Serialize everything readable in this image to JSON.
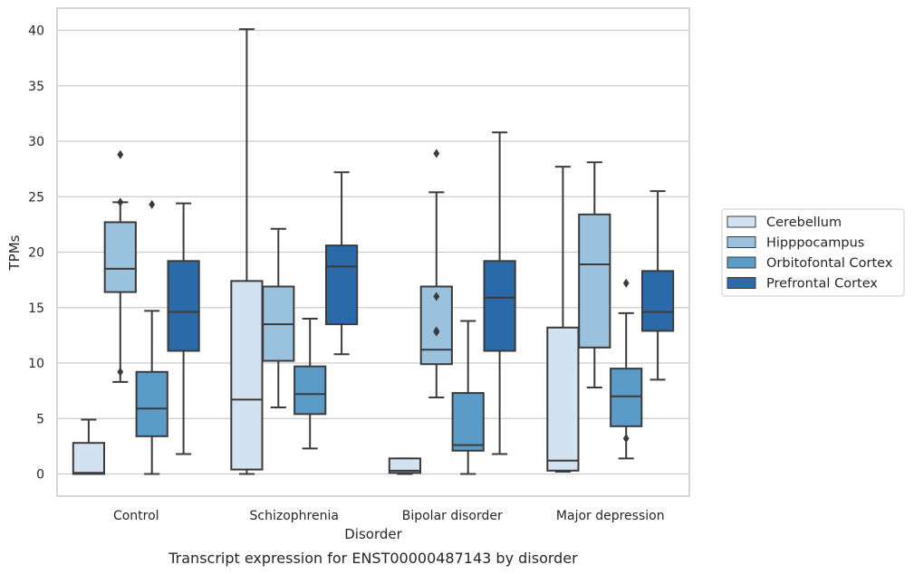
{
  "caption": "Transcript expression for ENST00000487143 by disorder",
  "chart_data": {
    "type": "box",
    "xlabel": "Disorder",
    "ylabel": "TPMs",
    "ylim": [
      -2,
      42
    ],
    "yticks": [
      0,
      5,
      10,
      15,
      20,
      25,
      30,
      35,
      40
    ],
    "grid": true,
    "legend_position": "right",
    "categories": [
      "Control",
      "Schizophrenia",
      "Bipolar disorder",
      "Major depression"
    ],
    "series": [
      {
        "name": "Cerebellum",
        "color": "#d3e2f1",
        "boxes": [
          {
            "whislo": 0.0,
            "q1": 0.0,
            "med": 0.1,
            "q3": 2.8,
            "whishi": 4.9,
            "fliers": []
          },
          {
            "whislo": 0.0,
            "q1": 0.4,
            "med": 6.7,
            "q3": 17.4,
            "whishi": 40.1,
            "fliers": []
          },
          {
            "whislo": 0.0,
            "q1": 0.1,
            "med": 0.3,
            "q3": 1.4,
            "whishi": 1.4,
            "fliers": []
          },
          {
            "whislo": 0.2,
            "q1": 0.3,
            "med": 1.2,
            "q3": 13.2,
            "whishi": 27.7,
            "fliers": []
          }
        ]
      },
      {
        "name": "Hipppocampus",
        "color": "#9ac1dd",
        "boxes": [
          {
            "whislo": 8.3,
            "q1": 16.4,
            "med": 18.5,
            "q3": 22.7,
            "whishi": 24.5,
            "fliers": [
              28.8,
              24.5,
              9.2
            ]
          },
          {
            "whislo": 6.0,
            "q1": 10.2,
            "med": 13.5,
            "q3": 16.9,
            "whishi": 22.1,
            "fliers": []
          },
          {
            "whislo": 6.9,
            "q1": 9.9,
            "med": 11.2,
            "q3": 16.9,
            "whishi": 25.4,
            "fliers": [
              28.9,
              16.0,
              12.9,
              12.8
            ]
          },
          {
            "whislo": 7.8,
            "q1": 11.4,
            "med": 18.9,
            "q3": 23.4,
            "whishi": 28.1,
            "fliers": []
          }
        ]
      },
      {
        "name": "Orbitofontal Cortex",
        "color": "#5a9bc8",
        "boxes": [
          {
            "whislo": 0.0,
            "q1": 3.4,
            "med": 5.9,
            "q3": 9.2,
            "whishi": 14.7,
            "fliers": [
              24.3
            ]
          },
          {
            "whislo": 2.3,
            "q1": 5.4,
            "med": 7.2,
            "q3": 9.7,
            "whishi": 14.0,
            "fliers": []
          },
          {
            "whislo": 0.0,
            "q1": 2.1,
            "med": 2.6,
            "q3": 7.3,
            "whishi": 13.8,
            "fliers": []
          },
          {
            "whislo": 1.4,
            "q1": 4.3,
            "med": 7.0,
            "q3": 9.5,
            "whishi": 14.5,
            "fliers": [
              17.2,
              3.2
            ]
          }
        ]
      },
      {
        "name": "Prefrontal Cortex",
        "color": "#2b6aa9",
        "boxes": [
          {
            "whislo": 1.8,
            "q1": 11.1,
            "med": 14.6,
            "q3": 19.2,
            "whishi": 24.4,
            "fliers": []
          },
          {
            "whislo": 10.8,
            "q1": 13.5,
            "med": 18.7,
            "q3": 20.6,
            "whishi": 27.2,
            "fliers": []
          },
          {
            "whislo": 1.8,
            "q1": 11.1,
            "med": 15.9,
            "q3": 19.2,
            "whishi": 30.8,
            "fliers": []
          },
          {
            "whislo": 8.5,
            "q1": 12.9,
            "med": 14.6,
            "q3": 18.3,
            "whishi": 25.5,
            "fliers": []
          }
        ]
      }
    ]
  }
}
